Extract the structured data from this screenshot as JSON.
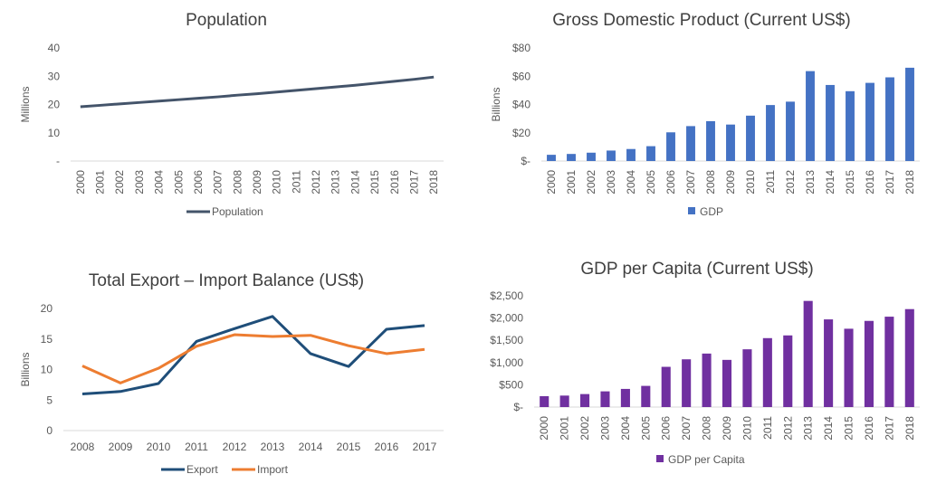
{
  "chart_data": [
    {
      "type": "line",
      "title": "Population",
      "ylabel": "Millions",
      "ylim": [
        0,
        40
      ],
      "yticks": [
        "-",
        "10",
        "20",
        "30",
        "40"
      ],
      "categories": [
        "2000",
        "2001",
        "2002",
        "2003",
        "2004",
        "2005",
        "2006",
        "2007",
        "2008",
        "2009",
        "2010",
        "2011",
        "2012",
        "2013",
        "2014",
        "2015",
        "2016",
        "2017",
        "2018"
      ],
      "series": [
        {
          "name": "Population",
          "color": "#44546a",
          "values": [
            19.2,
            19.7,
            20.2,
            20.7,
            21.2,
            21.7,
            22.2,
            22.7,
            23.3,
            23.8,
            24.4,
            25.0,
            25.6,
            26.2,
            26.8,
            27.5,
            28.2,
            28.9,
            29.7
          ]
        }
      ],
      "legend": "bottom",
      "grid": false
    },
    {
      "type": "bar",
      "title": "Gross Domestic Product (Current US$)",
      "ylabel": "Billions",
      "ylim": [
        0,
        80
      ],
      "yticks": [
        "$-",
        "$20",
        "$40",
        "$60",
        "$80"
      ],
      "categories": [
        "2000",
        "2001",
        "2002",
        "2003",
        "2004",
        "2005",
        "2006",
        "2007",
        "2008",
        "2009",
        "2010",
        "2011",
        "2012",
        "2013",
        "2014",
        "2015",
        "2016",
        "2017",
        "2018"
      ],
      "series": [
        {
          "name": "GDP",
          "color": "#4472c4",
          "values": [
            4.4,
            5.0,
            5.9,
            7.4,
            8.5,
            10.5,
            20.3,
            24.7,
            28.2,
            25.8,
            32.1,
            39.6,
            42.0,
            63.6,
            53.8,
            49.4,
            55.3,
            59.2,
            66.0
          ]
        }
      ],
      "legend": "bottom",
      "grid": false
    },
    {
      "type": "line",
      "title": "Total Export – Import Balance (US$)",
      "ylabel": "Billions",
      "ylim": [
        0,
        20
      ],
      "yticks": [
        "0",
        "5",
        "10",
        "15",
        "20"
      ],
      "categories": [
        "2008",
        "2009",
        "2010",
        "2011",
        "2012",
        "2013",
        "2014",
        "2015",
        "2016",
        "2017"
      ],
      "series": [
        {
          "name": "Export",
          "color": "#1f4e79",
          "values": [
            6.0,
            6.4,
            7.7,
            14.6,
            16.7,
            18.7,
            12.6,
            10.5,
            16.6,
            17.2
          ]
        },
        {
          "name": "Import",
          "color": "#ed7d31",
          "values": [
            10.6,
            7.8,
            10.2,
            13.8,
            15.7,
            15.4,
            15.6,
            13.9,
            12.6,
            13.3
          ]
        }
      ],
      "legend": "bottom",
      "grid": false
    },
    {
      "type": "bar",
      "title": "GDP per Capita (Current US$)",
      "ylabel": "",
      "ylim": [
        0,
        2500
      ],
      "yticks": [
        "$-",
        "$500",
        "$1,000",
        "$1,500",
        "$2,000",
        "$2,500"
      ],
      "categories": [
        "2000",
        "2001",
        "2002",
        "2003",
        "2004",
        "2005",
        "2006",
        "2007",
        "2008",
        "2009",
        "2010",
        "2011",
        "2012",
        "2013",
        "2014",
        "2015",
        "2016",
        "2017",
        "2018"
      ],
      "series": [
        {
          "name": "GDP per Capita",
          "color": "#7030a0",
          "values": [
            245,
            258,
            292,
            353,
            408,
            476,
            904,
            1073,
            1202,
            1060,
            1298,
            1549,
            1610,
            2385,
            1970,
            1760,
            1936,
            2031,
            2201
          ]
        }
      ],
      "legend": "bottom",
      "grid": false
    }
  ]
}
